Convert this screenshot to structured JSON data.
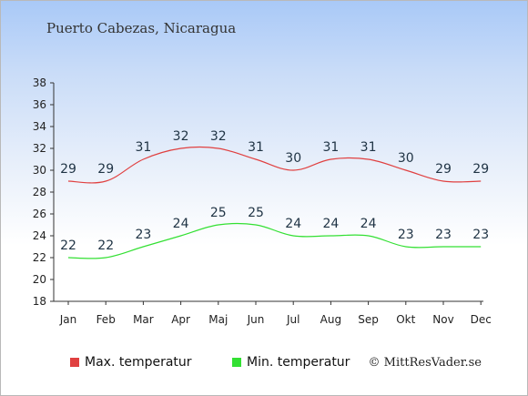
{
  "title": "Puerto Cabezas, Nicaragua",
  "credit": "© MittResVader.se",
  "chart_data": {
    "type": "line",
    "categories": [
      "Jan",
      "Feb",
      "Mar",
      "Apr",
      "Maj",
      "Jun",
      "Jul",
      "Aug",
      "Sep",
      "Okt",
      "Nov",
      "Dec"
    ],
    "ylim": [
      18,
      38
    ],
    "yticks": [
      18,
      20,
      22,
      24,
      26,
      28,
      30,
      32,
      34,
      36,
      38
    ],
    "grid": false,
    "legend_position": "bottom-left",
    "series": [
      {
        "name": "Max. temperatur",
        "color": "#e04040",
        "values": [
          29,
          29,
          31,
          32,
          32,
          31,
          30,
          31,
          31,
          30,
          29,
          29
        ]
      },
      {
        "name": "Min. temperatur",
        "color": "#33e033",
        "values": [
          22,
          22,
          23,
          24,
          25,
          25,
          24,
          24,
          24,
          23,
          23,
          23
        ]
      }
    ]
  }
}
